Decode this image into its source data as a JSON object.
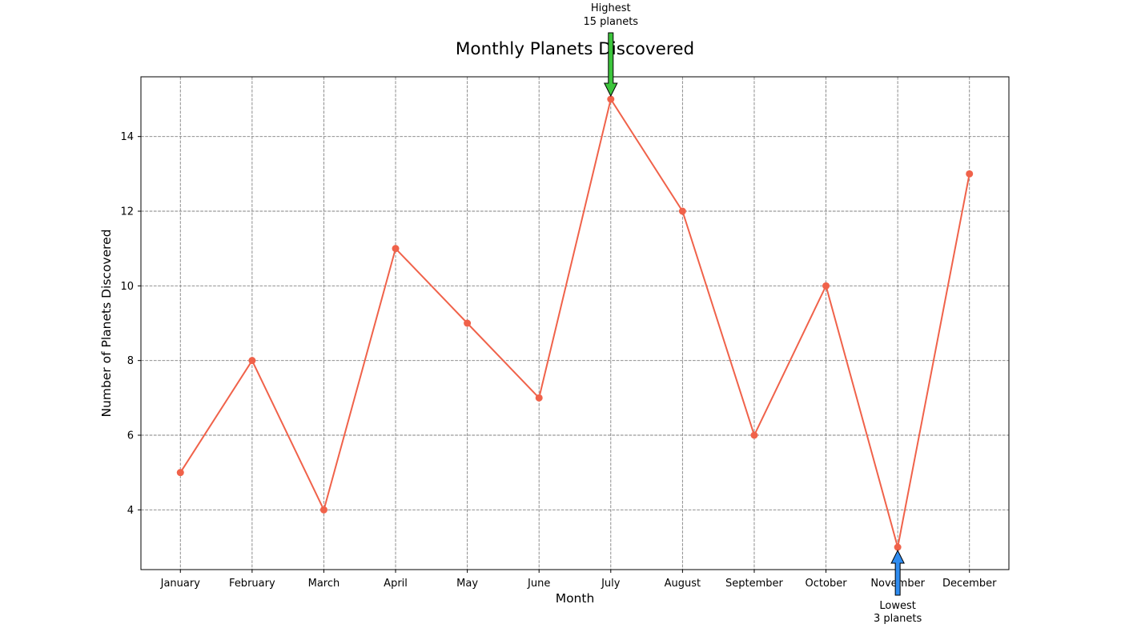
{
  "chart_data": {
    "type": "line",
    "title": "Monthly Planets Discovered",
    "xlabel": "Month",
    "ylabel": "Number of Planets Discovered",
    "categories": [
      "January",
      "February",
      "March",
      "April",
      "May",
      "June",
      "July",
      "August",
      "September",
      "October",
      "November",
      "December"
    ],
    "values": [
      5,
      8,
      4,
      11,
      9,
      7,
      15,
      12,
      6,
      10,
      3,
      13
    ],
    "ylim": [
      2.4,
      15.6
    ],
    "yticks": [
      4,
      6,
      8,
      10,
      12,
      14
    ],
    "grid": true,
    "line_color": "#f0624a",
    "annotations": [
      {
        "kind": "highest",
        "line1": "Highest",
        "line2": "15 planets",
        "category": "July",
        "value": 15,
        "color": "#3cc43c"
      },
      {
        "kind": "lowest",
        "line1": "Lowest",
        "line2": "3 planets",
        "category": "November",
        "value": 3,
        "color": "#2f8cf0"
      }
    ]
  }
}
